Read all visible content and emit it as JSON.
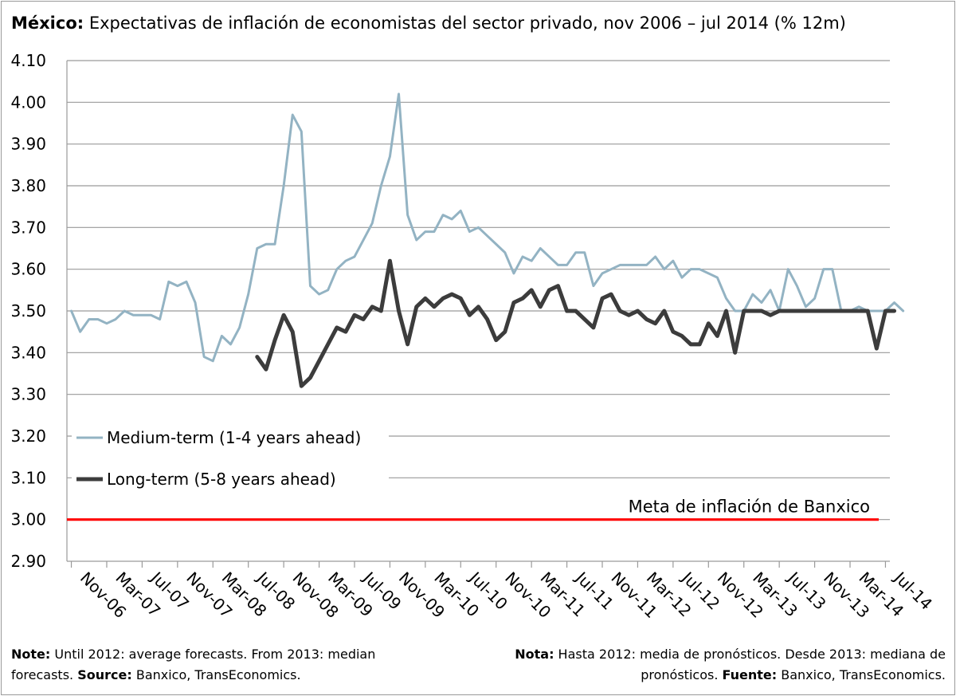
{
  "title": {
    "bold": "México:",
    "text": " Expectativas de inflación de economistas del sector privado, nov 2006 – jul 2014 (% 12m)"
  },
  "notes": {
    "left": {
      "b1": "Note:",
      "t1": " Until 2012: average forecasts. From 2013: median forecasts. ",
      "b2": "Source:",
      "t2": " Banxico, TransEconomics."
    },
    "right": {
      "b1": "Nota:",
      "t1": " Hasta 2012: media de pronósticos. Desde 2013: mediana de pronósticos. ",
      "b2": "Fuente:",
      "t2": " Banxico, TransEconomics."
    }
  },
  "chart_data": {
    "type": "line",
    "title": "México: Expectativas de inflación de economistas del sector privado, nov 2006 – jul 2014 (% 12m)",
    "ylim": [
      2.9,
      4.1
    ],
    "yticks": [
      "2.90",
      "3.00",
      "3.10",
      "3.20",
      "3.30",
      "3.40",
      "3.50",
      "3.60",
      "3.70",
      "3.80",
      "3.90",
      "4.00",
      "4.10"
    ],
    "xtick_labels": [
      "Nov-06",
      "Mar-07",
      "Jul-07",
      "Nov-07",
      "Mar-08",
      "Jul-08",
      "Nov-08",
      "Mar-09",
      "Jul-09",
      "Nov-09",
      "Mar-10",
      "Jul-10",
      "Nov-10",
      "Mar-11",
      "Jul-11",
      "Nov-11",
      "Mar-12",
      "Jul-12",
      "Nov-12",
      "Mar-13",
      "Jul-13",
      "Nov-13",
      "Mar-14",
      "Jul-14"
    ],
    "x_start": "Nov-06",
    "x_end": "Jul-14",
    "grid": true,
    "legend_position": "lower-left",
    "series": [
      {
        "name": "Medium-term (1-4 years ahead)",
        "color": "#93b3c3",
        "start": "Nov-06",
        "values": [
          3.5,
          3.45,
          3.48,
          3.48,
          3.47,
          3.48,
          3.5,
          3.49,
          3.49,
          3.49,
          3.48,
          3.57,
          3.56,
          3.57,
          3.52,
          3.39,
          3.38,
          3.44,
          3.42,
          3.46,
          3.54,
          3.65,
          3.66,
          3.66,
          3.8,
          3.97,
          3.93,
          3.56,
          3.54,
          3.55,
          3.6,
          3.62,
          3.63,
          3.67,
          3.71,
          3.8,
          3.87,
          4.02,
          3.73,
          3.67,
          3.69,
          3.69,
          3.73,
          3.72,
          3.74,
          3.69,
          3.7,
          3.68,
          3.66,
          3.64,
          3.59,
          3.63,
          3.62,
          3.65,
          3.63,
          3.61,
          3.61,
          3.64,
          3.64,
          3.56,
          3.59,
          3.6,
          3.61,
          3.61,
          3.61,
          3.61,
          3.63,
          3.6,
          3.62,
          3.58,
          3.6,
          3.6,
          3.59,
          3.58,
          3.53,
          3.5,
          3.5,
          3.54,
          3.52,
          3.55,
          3.5,
          3.6,
          3.56,
          3.51,
          3.53,
          3.6,
          3.6,
          3.5,
          3.5,
          3.51,
          3.5,
          3.5,
          3.5,
          3.52,
          3.5
        ]
      },
      {
        "name": "Long-term (5-8 years ahead)",
        "color": "#3c3c3c",
        "start": "Aug-08",
        "values": [
          3.39,
          3.36,
          3.43,
          3.49,
          3.45,
          3.32,
          3.34,
          3.38,
          3.42,
          3.46,
          3.45,
          3.49,
          3.48,
          3.51,
          3.5,
          3.62,
          3.5,
          3.42,
          3.51,
          3.53,
          3.51,
          3.53,
          3.54,
          3.53,
          3.49,
          3.51,
          3.48,
          3.43,
          3.45,
          3.52,
          3.53,
          3.55,
          3.51,
          3.55,
          3.56,
          3.5,
          3.5,
          3.48,
          3.46,
          3.53,
          3.54,
          3.5,
          3.49,
          3.5,
          3.48,
          3.47,
          3.5,
          3.45,
          3.44,
          3.42,
          3.42,
          3.47,
          3.44,
          3.5,
          3.4,
          3.5,
          3.5,
          3.5,
          3.49,
          3.5,
          3.5,
          3.5,
          3.5,
          3.5,
          3.5,
          3.5,
          3.5,
          3.5,
          3.5,
          3.5,
          3.41,
          3.5,
          3.5
        ]
      },
      {
        "name": "Meta de inflación de Banxico",
        "color": "#ff0000",
        "constant": 3.0
      }
    ]
  }
}
